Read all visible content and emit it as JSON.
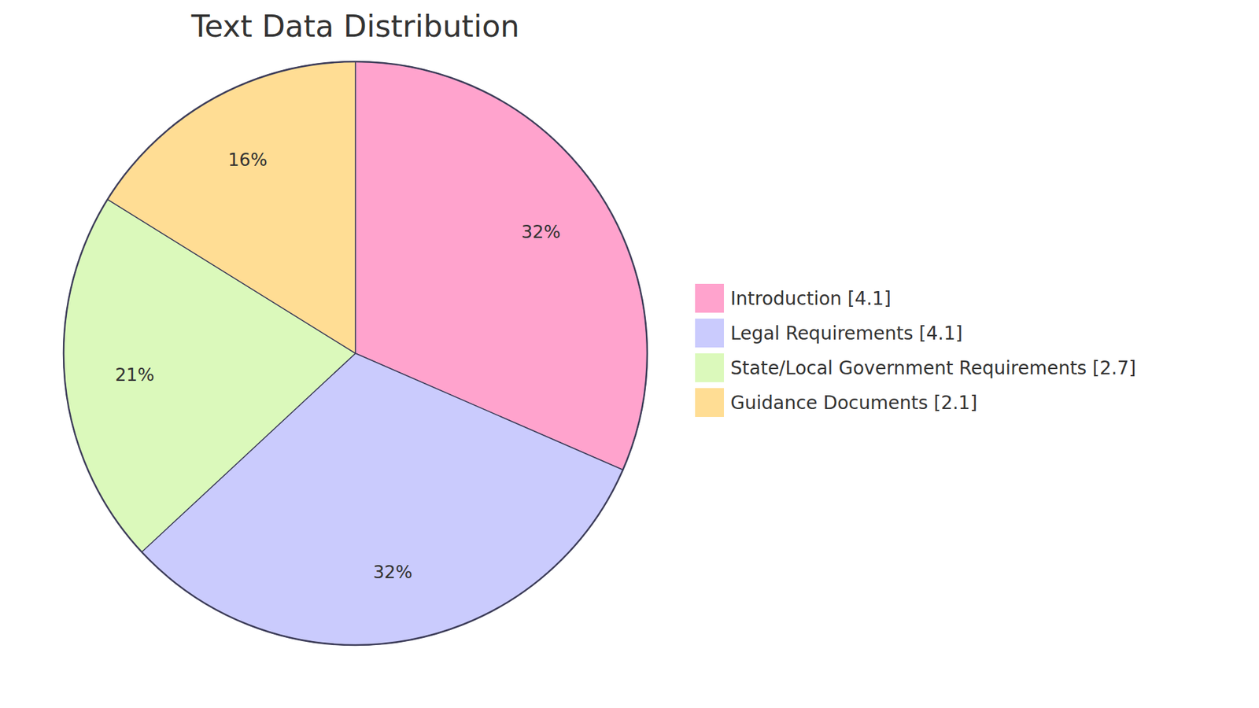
{
  "chart_data": {
    "type": "pie",
    "title": "Text Data Distribution",
    "categories": [
      "Introduction [4.1]",
      "Legal Requirements [4.1]",
      "State/Local Government Requirements [2.7]",
      "Guidance Documents [2.1]"
    ],
    "values": [
      4.1,
      4.1,
      2.7,
      2.1
    ],
    "colors": [
      "#ffa3cd",
      "#cacbfd",
      "#dbf9bb",
      "#ffdd94"
    ],
    "slice_labels": [
      {
        "value": 32,
        "label": "32%"
      },
      {
        "value": 32,
        "label": "32%"
      },
      {
        "value": 21,
        "label": "21%"
      },
      {
        "value": 16,
        "label": "16%"
      }
    ],
    "legend": "right"
  }
}
